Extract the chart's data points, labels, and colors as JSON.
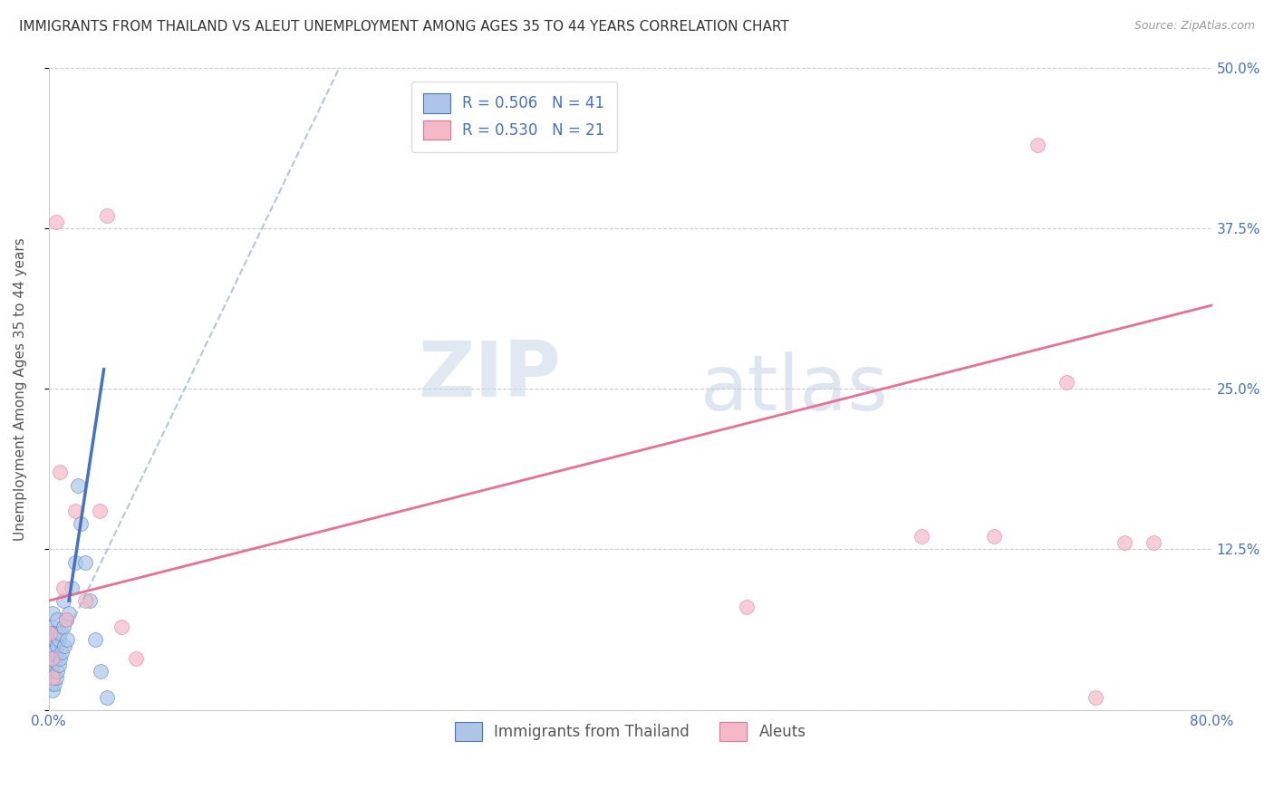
{
  "title": "IMMIGRANTS FROM THAILAND VS ALEUT UNEMPLOYMENT AMONG AGES 35 TO 44 YEARS CORRELATION CHART",
  "source": "Source: ZipAtlas.com",
  "ylabel": "Unemployment Among Ages 35 to 44 years",
  "xlim": [
    0.0,
    0.8
  ],
  "ylim": [
    0.0,
    0.5
  ],
  "ytick_positions": [
    0.0,
    0.125,
    0.25,
    0.375,
    0.5
  ],
  "yticklabels": [
    "",
    "12.5%",
    "25.0%",
    "37.5%",
    "50.0%"
  ],
  "blue_scatter_x": [
    0.001,
    0.001,
    0.001,
    0.002,
    0.002,
    0.002,
    0.002,
    0.003,
    0.003,
    0.003,
    0.003,
    0.003,
    0.004,
    0.004,
    0.004,
    0.005,
    0.005,
    0.005,
    0.006,
    0.006,
    0.006,
    0.007,
    0.007,
    0.008,
    0.008,
    0.009,
    0.01,
    0.01,
    0.011,
    0.012,
    0.013,
    0.014,
    0.016,
    0.018,
    0.02,
    0.022,
    0.025,
    0.028,
    0.032,
    0.036,
    0.04
  ],
  "blue_scatter_y": [
    0.025,
    0.04,
    0.055,
    0.02,
    0.035,
    0.05,
    0.065,
    0.015,
    0.03,
    0.045,
    0.06,
    0.075,
    0.02,
    0.038,
    0.055,
    0.025,
    0.042,
    0.06,
    0.03,
    0.05,
    0.07,
    0.035,
    0.055,
    0.04,
    0.06,
    0.045,
    0.065,
    0.085,
    0.05,
    0.07,
    0.055,
    0.075,
    0.095,
    0.115,
    0.175,
    0.145,
    0.115,
    0.085,
    0.055,
    0.03,
    0.01
  ],
  "pink_scatter_x": [
    0.001,
    0.002,
    0.003,
    0.005,
    0.008,
    0.01,
    0.012,
    0.018,
    0.025,
    0.035,
    0.04,
    0.05,
    0.06,
    0.48,
    0.6,
    0.65,
    0.68,
    0.7,
    0.72,
    0.74,
    0.76
  ],
  "pink_scatter_y": [
    0.06,
    0.04,
    0.025,
    0.38,
    0.185,
    0.095,
    0.07,
    0.155,
    0.085,
    0.155,
    0.385,
    0.065,
    0.04,
    0.08,
    0.135,
    0.135,
    0.44,
    0.255,
    0.01,
    0.13,
    0.13
  ],
  "blue_solid_line_x": [
    0.014,
    0.038
  ],
  "blue_solid_line_y": [
    0.085,
    0.265
  ],
  "blue_dashed_line_x": [
    0.0,
    0.2
  ],
  "blue_dashed_line_y": [
    0.03,
    0.5
  ],
  "pink_line_x": [
    0.0,
    0.8
  ],
  "pink_line_y": [
    0.085,
    0.315
  ],
  "blue_color": "#adc6e8",
  "blue_line_color": "#4472c4",
  "pink_color": "#f4b8c8",
  "pink_line_color": "#e87090",
  "legend_blue_r": "R = 0.506",
  "legend_blue_n": "N = 41",
  "legend_pink_r": "R = 0.530",
  "legend_pink_n": "N = 21",
  "legend_label_blue": "Immigrants from Thailand",
  "legend_label_pink": "Aleuts",
  "watermark_zip": "ZIP",
  "watermark_atlas": "atlas",
  "background_color": "#ffffff",
  "title_fontsize": 11,
  "axis_label_fontsize": 11,
  "tick_fontsize": 11,
  "legend_fontsize": 12
}
